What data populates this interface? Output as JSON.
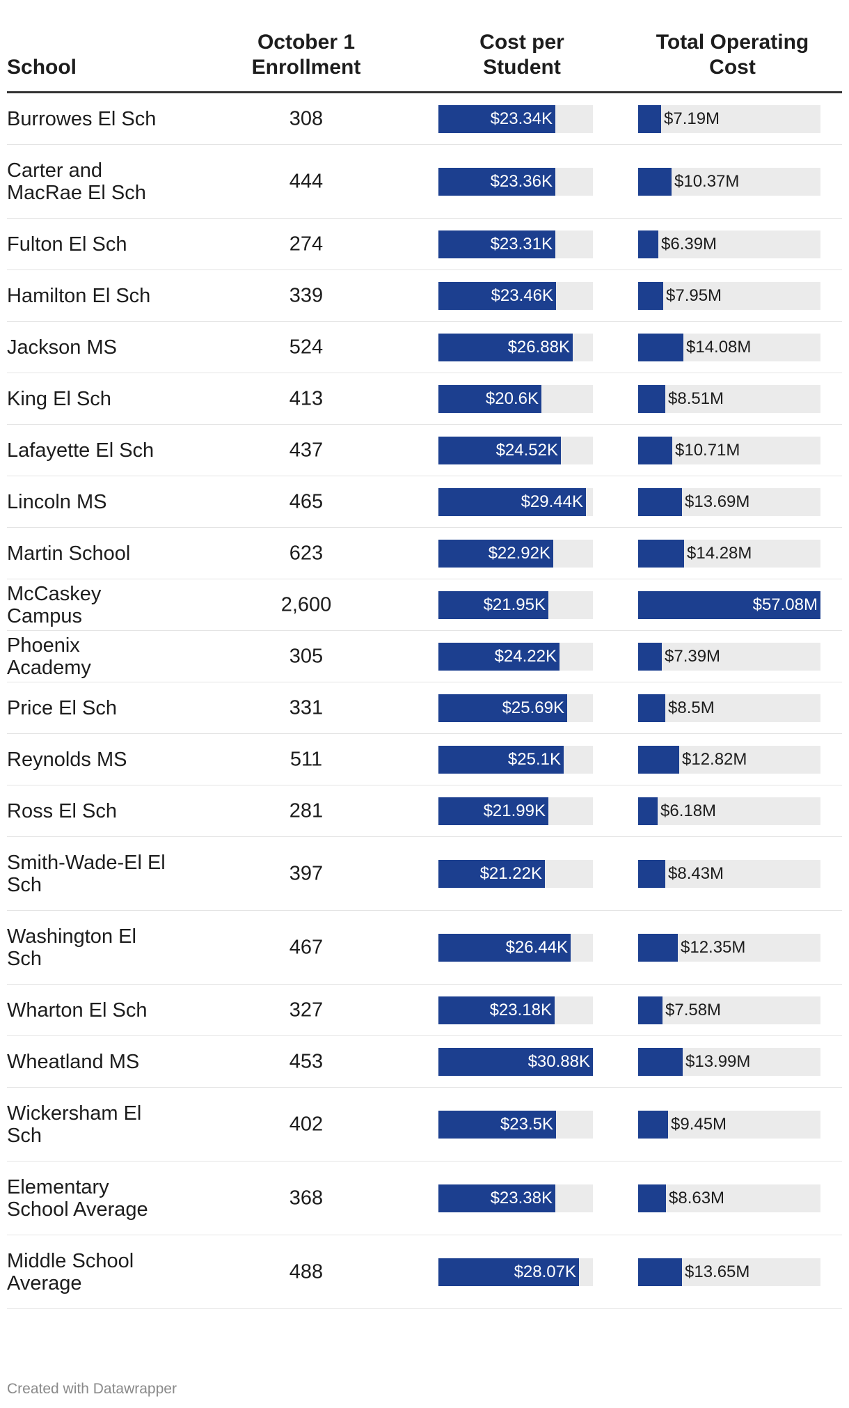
{
  "headers": {
    "school": "School",
    "enrollment": "October 1\nEnrollment",
    "cost_per_student": "Cost per\nStudent",
    "total_cost": "Total Operating\nCost"
  },
  "footer": "Created with Datawrapper",
  "colors": {
    "bar": "#1c3f8f",
    "track": "#ebebeb",
    "header_rule": "#333333",
    "row_rule": "#e4e4e4"
  },
  "chart_data": {
    "type": "table",
    "columns": [
      "School",
      "October 1 Enrollment",
      "Cost per Student",
      "Total Operating Cost"
    ],
    "cost_max": 30880,
    "total_max": 57080000,
    "rows": [
      {
        "school": "Burrowes El Sch",
        "enrollment": "308",
        "cost": 23340,
        "cost_label": "$23.34K",
        "total": 7190000,
        "total_label": "$7.19M"
      },
      {
        "school": "Carter and MacRae El Sch",
        "enrollment": "444",
        "cost": 23360,
        "cost_label": "$23.36K",
        "total": 10370000,
        "total_label": "$10.37M"
      },
      {
        "school": "Fulton El Sch",
        "enrollment": "274",
        "cost": 23310,
        "cost_label": "$23.31K",
        "total": 6390000,
        "total_label": "$6.39M"
      },
      {
        "school": "Hamilton El Sch",
        "enrollment": "339",
        "cost": 23460,
        "cost_label": "$23.46K",
        "total": 7950000,
        "total_label": "$7.95M"
      },
      {
        "school": "Jackson MS",
        "enrollment": "524",
        "cost": 26880,
        "cost_label": "$26.88K",
        "total": 14080000,
        "total_label": "$14.08M"
      },
      {
        "school": "King El Sch",
        "enrollment": "413",
        "cost": 20600,
        "cost_label": "$20.6K",
        "total": 8510000,
        "total_label": "$8.51M"
      },
      {
        "school": "Lafayette El Sch",
        "enrollment": "437",
        "cost": 24520,
        "cost_label": "$24.52K",
        "total": 10710000,
        "total_label": "$10.71M"
      },
      {
        "school": "Lincoln MS",
        "enrollment": "465",
        "cost": 29440,
        "cost_label": "$29.44K",
        "total": 13690000,
        "total_label": "$13.69M"
      },
      {
        "school": "Martin School",
        "enrollment": "623",
        "cost": 22920,
        "cost_label": "$22.92K",
        "total": 14280000,
        "total_label": "$14.28M"
      },
      {
        "school": "McCaskey Campus",
        "enrollment": "2,600",
        "cost": 21950,
        "cost_label": "$21.95K",
        "total": 57080000,
        "total_label": "$57.08M"
      },
      {
        "school": "Phoenix Academy",
        "enrollment": "305",
        "cost": 24220,
        "cost_label": "$24.22K",
        "total": 7390000,
        "total_label": "$7.39M"
      },
      {
        "school": "Price El Sch",
        "enrollment": "331",
        "cost": 25690,
        "cost_label": "$25.69K",
        "total": 8500000,
        "total_label": "$8.5M"
      },
      {
        "school": "Reynolds MS",
        "enrollment": "511",
        "cost": 25100,
        "cost_label": "$25.1K",
        "total": 12820000,
        "total_label": "$12.82M"
      },
      {
        "school": "Ross El Sch",
        "enrollment": "281",
        "cost": 21990,
        "cost_label": "$21.99K",
        "total": 6180000,
        "total_label": "$6.18M"
      },
      {
        "school": "Smith-Wade-El El Sch",
        "enrollment": "397",
        "cost": 21220,
        "cost_label": "$21.22K",
        "total": 8430000,
        "total_label": "$8.43M"
      },
      {
        "school": "Washington El Sch",
        "enrollment": "467",
        "cost": 26440,
        "cost_label": "$26.44K",
        "total": 12350000,
        "total_label": "$12.35M"
      },
      {
        "school": "Wharton El Sch",
        "enrollment": "327",
        "cost": 23180,
        "cost_label": "$23.18K",
        "total": 7580000,
        "total_label": "$7.58M"
      },
      {
        "school": "Wheatland MS",
        "enrollment": "453",
        "cost": 30880,
        "cost_label": "$30.88K",
        "total": 13990000,
        "total_label": "$13.99M"
      },
      {
        "school": "Wickersham El Sch",
        "enrollment": "402",
        "cost": 23500,
        "cost_label": "$23.5K",
        "total": 9450000,
        "total_label": "$9.45M"
      },
      {
        "school": "Elementary School Average",
        "enrollment": "368",
        "cost": 23380,
        "cost_label": "$23.38K",
        "total": 8630000,
        "total_label": "$8.63M"
      },
      {
        "school": "Middle School Average",
        "enrollment": "488",
        "cost": 28070,
        "cost_label": "$28.07K",
        "total": 13650000,
        "total_label": "$13.65M"
      }
    ]
  }
}
